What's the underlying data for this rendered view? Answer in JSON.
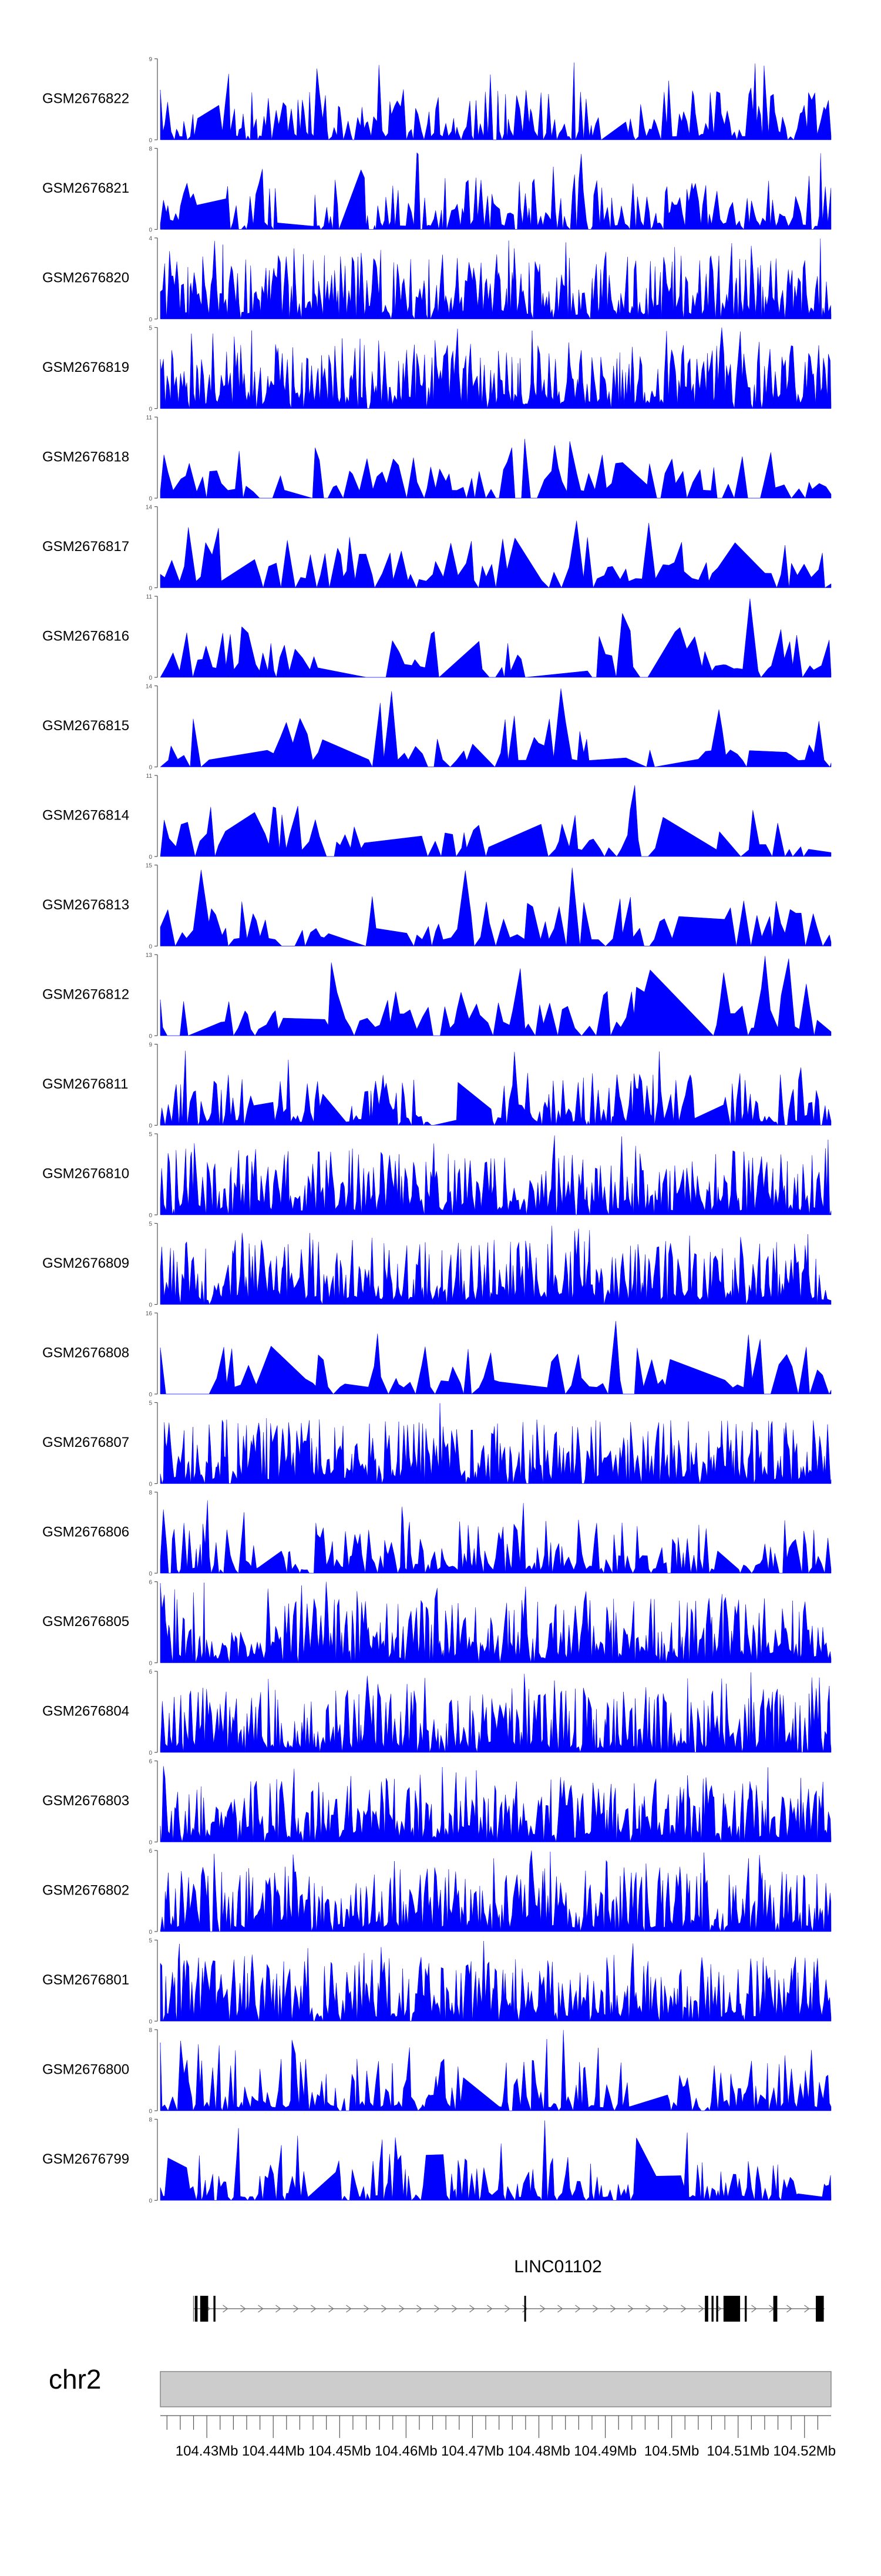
{
  "colors": {
    "track_fill": "#0000ff",
    "axis": "#555555",
    "ideogram_fill": "#cccccc",
    "ideogram_stroke": "#888888",
    "gene": "#000000",
    "text": "#000000"
  },
  "chart_data": {
    "type": "area",
    "x_range": [
      104423000,
      104524000
    ],
    "tracks": [
      {
        "name": "GSM2676822",
        "ymax": 9
      },
      {
        "name": "GSM2676821",
        "ymax": 8
      },
      {
        "name": "GSM2676820",
        "ymax": 4
      },
      {
        "name": "GSM2676819",
        "ymax": 5
      },
      {
        "name": "GSM2676818",
        "ymax": 11
      },
      {
        "name": "GSM2676817",
        "ymax": 14
      },
      {
        "name": "GSM2676816",
        "ymax": 11
      },
      {
        "name": "GSM2676815",
        "ymax": 14
      },
      {
        "name": "GSM2676814",
        "ymax": 11
      },
      {
        "name": "GSM2676813",
        "ymax": 15
      },
      {
        "name": "GSM2676812",
        "ymax": 13
      },
      {
        "name": "GSM2676811",
        "ymax": 9
      },
      {
        "name": "GSM2676810",
        "ymax": 5
      },
      {
        "name": "GSM2676809",
        "ymax": 5
      },
      {
        "name": "GSM2676808",
        "ymax": 16
      },
      {
        "name": "GSM2676807",
        "ymax": 5
      },
      {
        "name": "GSM2676806",
        "ymax": 8
      },
      {
        "name": "GSM2676805",
        "ymax": 6
      },
      {
        "name": "GSM2676804",
        "ymax": 6
      },
      {
        "name": "GSM2676803",
        "ymax": 6
      },
      {
        "name": "GSM2676802",
        "ymax": 6
      },
      {
        "name": "GSM2676801",
        "ymax": 5
      },
      {
        "name": "GSM2676800",
        "ymax": 8
      },
      {
        "name": "GSM2676799",
        "ymax": 8
      }
    ],
    "gene": {
      "name": "LINC01102",
      "strand": "+",
      "start": 104428000,
      "end": 104523000,
      "exons": [
        [
          104428200,
          104428600
        ],
        [
          104429000,
          104430200
        ],
        [
          104431000,
          104431300
        ],
        [
          104477800,
          104478000
        ],
        [
          104505000,
          104505500
        ],
        [
          104506000,
          104506300
        ],
        [
          104506700,
          104507000
        ],
        [
          104507800,
          104510300
        ],
        [
          104511000,
          104511300
        ],
        [
          104515300,
          104515900
        ],
        [
          104521700,
          104522900
        ]
      ]
    },
    "chromosome": "chr2",
    "axis_ticks": [
      {
        "pos": 104430000,
        "label": "104.43Mb"
      },
      {
        "pos": 104440000,
        "label": "104.44Mb"
      },
      {
        "pos": 104450000,
        "label": "104.45Mb"
      },
      {
        "pos": 104460000,
        "label": "104.46Mb"
      },
      {
        "pos": 104470000,
        "label": "104.47Mb"
      },
      {
        "pos": 104480000,
        "label": "104.48Mb"
      },
      {
        "pos": 104490000,
        "label": "104.49Mb"
      },
      {
        "pos": 104500000,
        "label": "104.5Mb"
      },
      {
        "pos": 104510000,
        "label": "104.51Mb"
      },
      {
        "pos": 104520000,
        "label": "104.52Mb"
      }
    ]
  }
}
